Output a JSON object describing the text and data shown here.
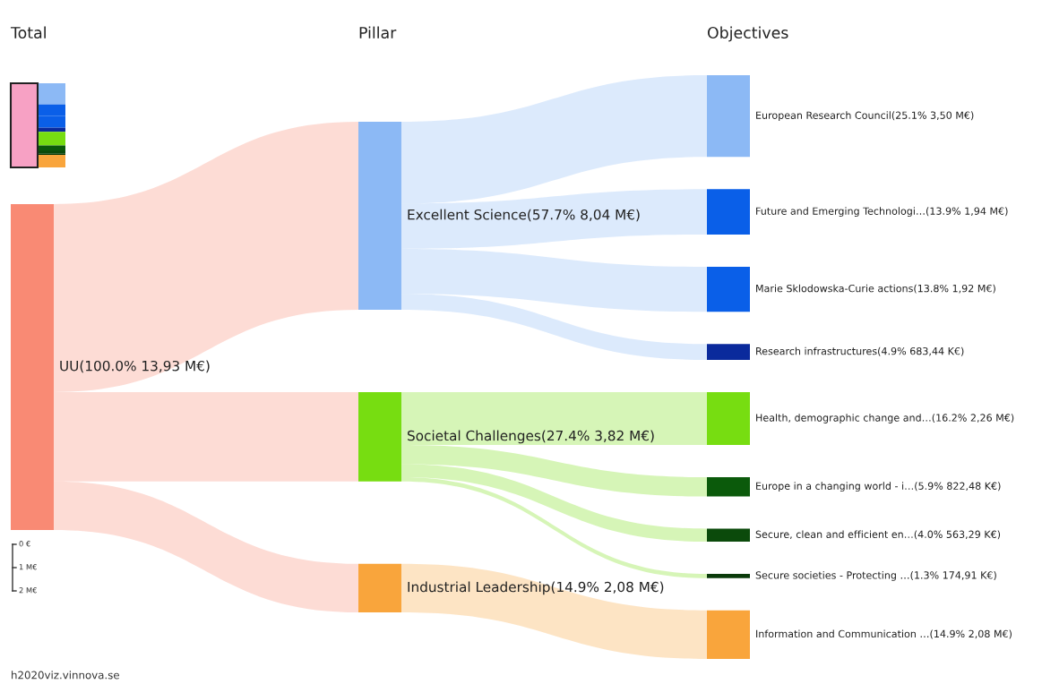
{
  "chart_data": {
    "type": "other",
    "categories": [
      "UU",
      "Excellent Science",
      "Societal Challenges",
      "Industrial Leadership",
      "European Research Council",
      "Future and Emerging Technologi…",
      "Marie Sklodowska-Curie actions",
      "Research infrastructures",
      "Health, demographic change and…",
      "Europe in a changing world - i…",
      "Secure, clean and efficient en…",
      "Secure societies - Protecting …",
      "Information and Communication …"
    ],
    "values": [
      100.0,
      57.7,
      27.4,
      14.9,
      25.1,
      13.9,
      13.8,
      4.9,
      16.2,
      5.9,
      4.0,
      1.3,
      14.9
    ],
    "value_labels": [
      "(100.0% 13,93 M€)",
      "(57.7% 8,04 M€)",
      "(27.4% 3,82 M€)",
      "(14.9% 2,08 M€)",
      "(25.1% 3,50 M€)",
      "(13.9% 1,94 M€)",
      "(13.8% 1,92 M€)",
      "(4.9% 683,44 K€)",
      "(16.2% 2,26 M€)",
      "(5.9% 822,48 K€)",
      "(4.0% 563,29 K€)",
      "(1.3% 174,91 K€)",
      "(14.9% 2,08 M€)"
    ],
    "colors": [
      "#f98a74",
      "#8cb9f5",
      "#77dd11",
      "#f9a53c",
      "#8cb9f5",
      "#0a5fe8",
      "#0a5fe8",
      "#0a2a9c",
      "#77dd11",
      "#0b5a0b",
      "#0b4a0b",
      "#0a3a0a",
      "#f9a53c"
    ],
    "annotations": [
      "Total",
      "Pillar",
      "Objectives",
      "0 €",
      "1 M€",
      "2 M€",
      "h2020viz.vinnova.se"
    ]
  }
}
